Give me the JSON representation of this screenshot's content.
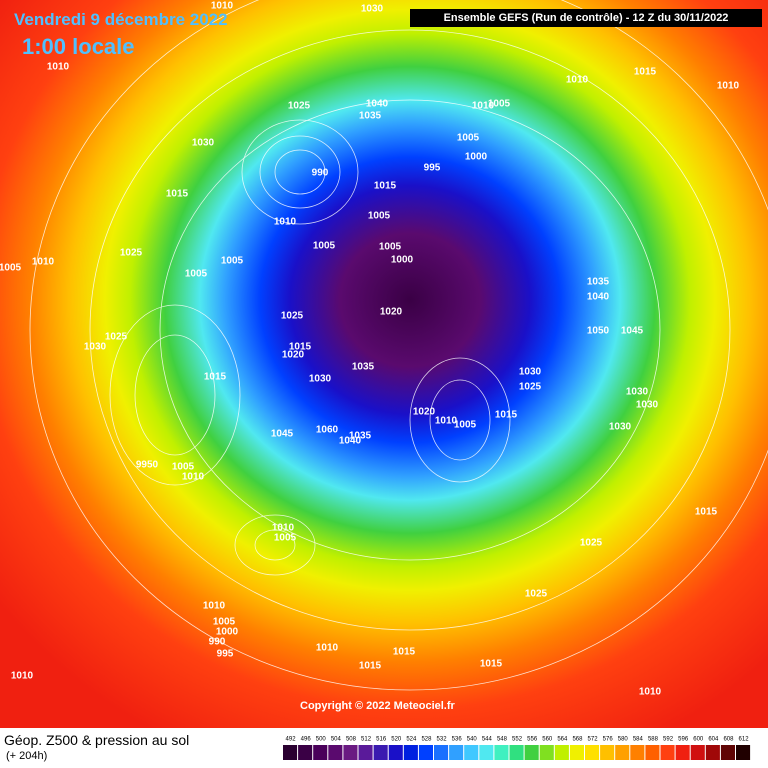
{
  "header": {
    "date": "Vendredi 9 décembre 2022",
    "time": "1:00 locale",
    "model": "Ensemble GEFS  (Run de contrôle)  -  12 Z du 30/11/2022"
  },
  "copyright": "Copyright © 2022 Meteociel.fr",
  "footer": {
    "title": "Géop. Z500 & pression au sol",
    "lead": "(+ 204h)"
  },
  "isobar_labels": [
    "1010",
    "1030",
    "1010",
    "1010",
    "1015",
    "1010",
    "1025",
    "1040",
    "1035",
    "1010",
    "1005",
    "1030",
    "1005",
    "1000",
    "990",
    "995",
    "1015",
    "1015",
    "1005",
    "1010",
    "1005",
    "1005",
    "1000",
    "1005",
    "1005",
    "1025",
    "1010",
    "1005",
    "1035",
    "1040",
    "1020",
    "1025",
    "1050",
    "1045",
    "1025",
    "1030",
    "1015",
    "1020",
    "1035",
    "1030",
    "1025",
    "1015",
    "1030",
    "1030",
    "1030",
    "1015",
    "1020",
    "1010",
    "1005",
    "1030",
    "1045",
    "1060",
    "1040",
    "1035",
    "9950",
    "1005",
    "1010",
    "1010",
    "1005",
    "1015",
    "1025",
    "1025",
    "1010",
    "1005",
    "1000",
    "990",
    "995",
    "1010",
    "1015",
    "1015",
    "1015",
    "1010",
    "1010"
  ],
  "color_scale": {
    "values": [
      492,
      496,
      500,
      504,
      508,
      512,
      516,
      520,
      524,
      528,
      532,
      536,
      540,
      544,
      548,
      552,
      556,
      560,
      564,
      568,
      572,
      576,
      580,
      584,
      588,
      592,
      596,
      600,
      604,
      608,
      612
    ],
    "colors": [
      "#2a0030",
      "#3a0045",
      "#4a005a",
      "#5a0a6e",
      "#6a1a82",
      "#5a1a9a",
      "#3a1ab0",
      "#1a10c8",
      "#0020e0",
      "#0040ff",
      "#1a70ff",
      "#30a0ff",
      "#40c8ff",
      "#50e8f0",
      "#40f0c0",
      "#30e080",
      "#40d040",
      "#80e020",
      "#c0f000",
      "#f0f000",
      "#ffe000",
      "#ffc000",
      "#ffa000",
      "#ff8000",
      "#ff6000",
      "#ff4010",
      "#f02010",
      "#d01010",
      "#a00808",
      "#600404",
      "#200000"
    ]
  }
}
